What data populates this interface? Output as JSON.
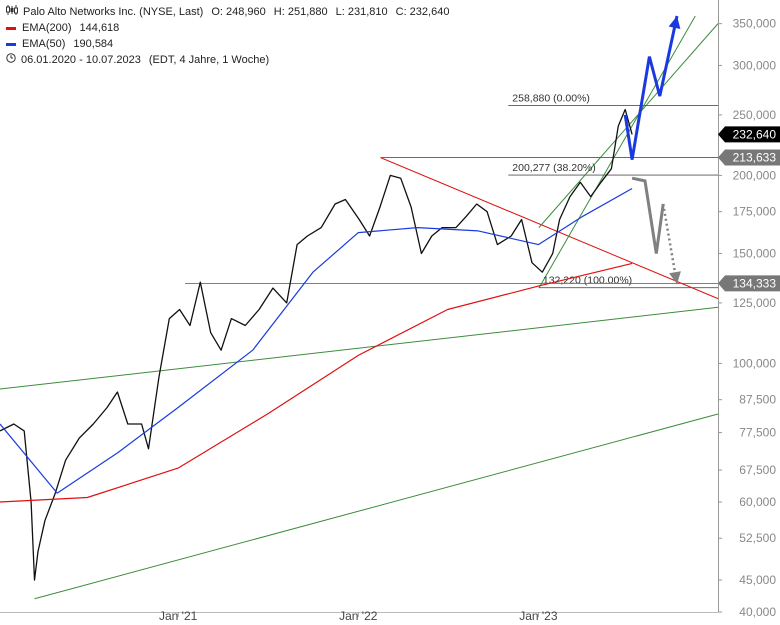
{
  "header": {
    "symbol": "Palo Alto Networks Inc. (NYSE, Last)",
    "open": "O: 248,960",
    "high": "H: 251,880",
    "low": "L: 231,810",
    "close": "C: 232,640",
    "ema200_label": "EMA(200)",
    "ema200_value": "144,618",
    "ema50_label": "EMA(50)",
    "ema50_value": "190,584",
    "date_range": "06.01.2020 - 10.07.2023",
    "range_info": "(EDT, 4 Jahre, 1 Woche)",
    "colors": {
      "ema200": "#e01010",
      "ema50": "#1a3adf"
    }
  },
  "chart_data": {
    "type": "line",
    "scale": "log",
    "ylim": [
      40000,
      360000
    ],
    "x_range": [
      "2020-01-06",
      "2023-07-10"
    ],
    "x_ticks": [
      {
        "date": "2021-01-01",
        "label": "Jan '21"
      },
      {
        "date": "2022-01-01",
        "label": "Jan '22"
      },
      {
        "date": "2023-01-01",
        "label": "Jan '23"
      }
    ],
    "y_ticks": [
      {
        "value": 350000,
        "label": "350,000"
      },
      {
        "value": 300000,
        "label": "300,000"
      },
      {
        "value": 250000,
        "label": "250,000"
      },
      {
        "value": 200000,
        "label": "200,000"
      },
      {
        "value": 175000,
        "label": "175,000"
      },
      {
        "value": 150000,
        "label": "150,000"
      },
      {
        "value": 125000,
        "label": "125,000"
      },
      {
        "value": 100000,
        "label": "100,000"
      },
      {
        "value": 87500,
        "label": "87,500"
      },
      {
        "value": 77500,
        "label": "77,500"
      },
      {
        "value": 67500,
        "label": "67,500"
      },
      {
        "value": 60000,
        "label": "60,000"
      },
      {
        "value": 52500,
        "label": "52,500"
      },
      {
        "value": 45000,
        "label": "45,000"
      },
      {
        "value": 40000,
        "label": "40,000"
      }
    ],
    "series": [
      {
        "name": "Palo Alto Networks Inc.",
        "color": "#111111",
        "points": [
          [
            "2020-01-06",
            78000
          ],
          [
            "2020-02-03",
            80000
          ],
          [
            "2020-02-24",
            78000
          ],
          [
            "2020-03-09",
            60000
          ],
          [
            "2020-03-16",
            45000
          ],
          [
            "2020-03-23",
            50000
          ],
          [
            "2020-04-06",
            56000
          ],
          [
            "2020-04-27",
            62000
          ],
          [
            "2020-05-18",
            70000
          ],
          [
            "2020-06-15",
            76000
          ],
          [
            "2020-07-13",
            80000
          ],
          [
            "2020-08-10",
            85000
          ],
          [
            "2020-08-31",
            90000
          ],
          [
            "2020-09-21",
            80000
          ],
          [
            "2020-10-19",
            80000
          ],
          [
            "2020-11-02",
            73000
          ],
          [
            "2020-11-23",
            95000
          ],
          [
            "2020-12-14",
            118000
          ],
          [
            "2021-01-04",
            122000
          ],
          [
            "2021-01-25",
            115000
          ],
          [
            "2021-02-15",
            135000
          ],
          [
            "2021-03-08",
            112000
          ],
          [
            "2021-03-29",
            105000
          ],
          [
            "2021-04-19",
            118000
          ],
          [
            "2021-05-17",
            115000
          ],
          [
            "2021-06-14",
            122000
          ],
          [
            "2021-07-12",
            132000
          ],
          [
            "2021-08-09",
            125000
          ],
          [
            "2021-08-30",
            155000
          ],
          [
            "2021-09-20",
            160000
          ],
          [
            "2021-10-18",
            165000
          ],
          [
            "2021-11-15",
            180000
          ],
          [
            "2021-12-06",
            183000
          ],
          [
            "2022-01-03",
            170000
          ],
          [
            "2022-01-24",
            160000
          ],
          [
            "2022-02-14",
            178000
          ],
          [
            "2022-03-07",
            200000
          ],
          [
            "2022-03-28",
            198000
          ],
          [
            "2022-04-18",
            178000
          ],
          [
            "2022-05-09",
            150000
          ],
          [
            "2022-05-30",
            160000
          ],
          [
            "2022-06-20",
            165000
          ],
          [
            "2022-07-18",
            165000
          ],
          [
            "2022-08-08",
            172000
          ],
          [
            "2022-08-29",
            180000
          ],
          [
            "2022-09-19",
            175000
          ],
          [
            "2022-10-10",
            155000
          ],
          [
            "2022-11-07",
            160000
          ],
          [
            "2022-11-28",
            170000
          ],
          [
            "2022-12-19",
            145000
          ],
          [
            "2023-01-09",
            140000
          ],
          [
            "2023-01-30",
            150000
          ],
          [
            "2023-02-13",
            170000
          ],
          [
            "2023-03-06",
            185000
          ],
          [
            "2023-03-27",
            195000
          ],
          [
            "2023-04-17",
            185000
          ],
          [
            "2023-05-08",
            195000
          ],
          [
            "2023-05-29",
            205000
          ],
          [
            "2023-06-12",
            240000
          ],
          [
            "2023-06-26",
            255000
          ],
          [
            "2023-07-10",
            232640
          ]
        ]
      },
      {
        "name": "EMA(200)",
        "color": "#e01010",
        "points": [
          [
            "2020-01-06",
            60000
          ],
          [
            "2020-07-01",
            61000
          ],
          [
            "2021-01-01",
            68000
          ],
          [
            "2021-07-01",
            83000
          ],
          [
            "2022-01-01",
            103000
          ],
          [
            "2022-07-01",
            122000
          ],
          [
            "2023-01-01",
            133000
          ],
          [
            "2023-07-10",
            144618
          ]
        ]
      },
      {
        "name": "EMA(50)",
        "color": "#1a3adf",
        "points": [
          [
            "2020-01-06",
            80000
          ],
          [
            "2020-05-01",
            62000
          ],
          [
            "2020-09-01",
            72000
          ],
          [
            "2021-01-01",
            85000
          ],
          [
            "2021-06-01",
            105000
          ],
          [
            "2021-10-01",
            140000
          ],
          [
            "2022-01-01",
            162000
          ],
          [
            "2022-05-01",
            165000
          ],
          [
            "2022-09-01",
            163000
          ],
          [
            "2023-01-01",
            155000
          ],
          [
            "2023-04-01",
            172000
          ],
          [
            "2023-07-10",
            190584
          ]
        ]
      }
    ],
    "levels": [
      {
        "label": "258,880 (0.00%)",
        "value": 258880,
        "from": "2022-11-01"
      },
      {
        "label": "200,277 (38.20%)",
        "value": 200277,
        "from": "2022-11-01"
      },
      {
        "label": "132,220 (100.00%)",
        "value": 132220,
        "from": "2023-01-02"
      },
      {
        "label": "",
        "value": 213633,
        "from": "2022-02-15"
      },
      {
        "label": "",
        "value": 134333,
        "from": "2021-01-15"
      }
    ],
    "price_tags": [
      {
        "label": "232,640",
        "value": 232640,
        "color": "#000000"
      },
      {
        "label": "213,633",
        "value": 213633,
        "color": "#777777"
      },
      {
        "label": "134,333",
        "value": 134333,
        "color": "#777777"
      }
    ],
    "trendlines": [
      {
        "color": "#e01010",
        "from": [
          "2022-02-15",
          213633
        ],
        "to": [
          "2023-12-31",
          127000
        ]
      },
      {
        "color": "#3d8c3d",
        "from": [
          "2020-01-06",
          91000
        ],
        "to": [
          "2023-12-31",
          123000
        ]
      },
      {
        "color": "#3d8c3d",
        "from": [
          "2020-03-16",
          42000
        ],
        "to": [
          "2023-12-31",
          83000
        ]
      },
      {
        "color": "#3d8c3d",
        "from": [
          "2023-01-02",
          132000
        ],
        "to": [
          "2023-11-15",
          360000
        ]
      },
      {
        "color": "#3d8c3d",
        "from": [
          "2023-01-02",
          165000
        ],
        "to": [
          "2023-12-31",
          350000
        ]
      }
    ],
    "projections": [
      {
        "style": "solid",
        "color": "#1a3adf",
        "points": [
          [
            "2023-06-26",
            250000
          ],
          [
            "2023-07-10",
            212000
          ],
          [
            "2023-08-14",
            310000
          ],
          [
            "2023-09-04",
            268000
          ],
          [
            "2023-10-09",
            360000
          ]
        ]
      },
      {
        "style": "solid",
        "color": "#808080",
        "points": [
          [
            "2023-07-10",
            198000
          ],
          [
            "2023-08-05",
            196000
          ],
          [
            "2023-08-28",
            150000
          ],
          [
            "2023-09-11",
            180000
          ]
        ]
      },
      {
        "style": "dotted",
        "color": "#808080",
        "points": [
          [
            "2023-09-11",
            180000
          ],
          [
            "2023-10-09",
            134000
          ]
        ]
      }
    ]
  }
}
